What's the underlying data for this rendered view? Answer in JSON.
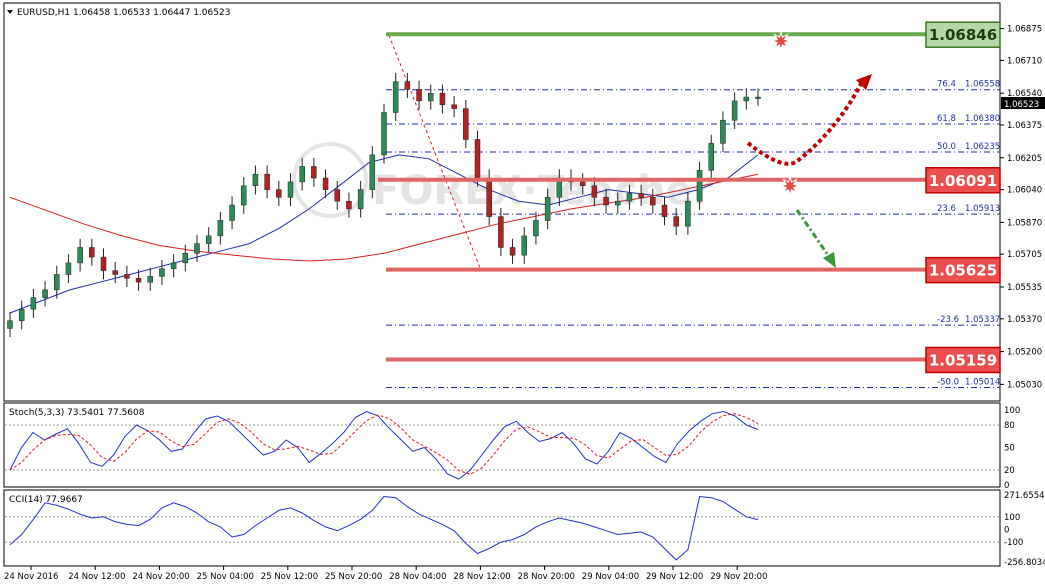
{
  "main_header": "EURUSD,H1  1.06458 1.06533 1.06447 1.06523",
  "stoch_header": "Stoch(5,3,3) 73.5401 77.5608",
  "cci_header": "CCI(14) 77.9667",
  "watermark": "FOREX·Teacher",
  "current_price": "1.06523",
  "key_levels": [
    {
      "label": "1.06846",
      "value": 1.06846,
      "color": "#6aa84f"
    },
    {
      "label": "1.06091",
      "value": 1.06091,
      "color": "#e06666"
    },
    {
      "label": "1.05625",
      "value": 1.05625,
      "color": "#e06666"
    },
    {
      "label": "1.05159",
      "value": 1.05159,
      "color": "#e06666"
    }
  ],
  "fib_levels": [
    {
      "pct": "76.4",
      "price": "1.06558",
      "value": 1.06558
    },
    {
      "pct": "61.8",
      "price": "1.06380",
      "value": 1.0638
    },
    {
      "pct": "50.0",
      "price": "1.06235",
      "value": 1.06235
    },
    {
      "pct": "23.6",
      "price": "1.05913",
      "value": 1.05913
    },
    {
      "pct": "-23.6",
      "price": "1.05337",
      "value": 1.05337
    },
    {
      "pct": "-50.0",
      "price": "1.05014",
      "value": 1.05014
    }
  ],
  "price_ticks": [
    "1.06875",
    "1.06710",
    "1.06540",
    "1.06375",
    "1.06205",
    "1.06040",
    "1.05870",
    "1.05705",
    "1.05535",
    "1.05370",
    "1.05200",
    "1.05030"
  ],
  "stoch_ticks": [
    "100",
    "80",
    "50",
    "20",
    "0"
  ],
  "cci_ticks": [
    "271.6554",
    "100",
    "0",
    "-100",
    "-256.8034"
  ],
  "time_labels": [
    "24 Nov 2016",
    "24 Nov 12:00",
    "24 Nov 20:00",
    "25 Nov 04:00",
    "25 Nov 12:00",
    "25 Nov 20:00",
    "28 Nov 04:00",
    "28 Nov 12:00",
    "28 Nov 20:00",
    "29 Nov 04:00",
    "29 Nov 12:00",
    "29 Nov 20:00"
  ],
  "colors": {
    "bull": "#2e8b57",
    "bear": "#b22222",
    "ma_fast": "#1f2fa8",
    "ma_slow": "#d62020",
    "fib": "#1f2fa8",
    "stoch_main": "#2233cc",
    "stoch_signal": "#dd2222",
    "cci": "#2233cc",
    "scenario_up": "#c00000",
    "scenario_down": "#3a9a3a"
  },
  "chart_data": {
    "type": "candlestick",
    "symbol": "EURUSD",
    "timeframe": "H1",
    "ylim": [
      1.0498,
      1.0693
    ],
    "x_categories": [
      "24 Nov 2016",
      "24 Nov 12:00",
      "24 Nov 20:00",
      "25 Nov 04:00",
      "25 Nov 12:00",
      "25 Nov 20:00",
      "28 Nov 04:00",
      "28 Nov 12:00",
      "28 Nov 20:00",
      "29 Nov 04:00",
      "29 Nov 12:00",
      "29 Nov 20:00"
    ],
    "close_series": [
      1.0536,
      1.0542,
      1.0548,
      1.0552,
      1.056,
      1.0566,
      1.0574,
      1.0569,
      1.0562,
      1.056,
      1.0558,
      1.0556,
      1.0559,
      1.0563,
      1.0566,
      1.0571,
      1.0576,
      1.058,
      1.0588,
      1.0596,
      1.0606,
      1.0612,
      1.0604,
      1.06,
      1.0608,
      1.0616,
      1.061,
      1.0604,
      1.0598,
      1.0594,
      1.0604,
      1.0622,
      1.0644,
      1.066,
      1.0656,
      1.065,
      1.0654,
      1.0648,
      1.0646,
      1.063,
      1.061,
      1.059,
      1.0574,
      1.057,
      1.058,
      1.0588,
      1.06,
      1.061,
      1.0608,
      1.0606,
      1.06,
      1.0596,
      1.0598,
      1.0602,
      1.06,
      1.0596,
      1.059,
      1.0585,
      1.0598,
      1.0614,
      1.0628,
      1.064,
      1.065,
      1.0652,
      1.0652
    ],
    "ma_fast_series": [
      1.054,
      1.0546,
      1.0552,
      1.0556,
      1.056,
      1.0564,
      1.0568,
      1.0572,
      1.0576,
      1.0584,
      1.0594,
      1.0606,
      1.0618,
      1.0622,
      1.062,
      1.0612,
      1.0604,
      1.0598,
      1.0596,
      1.06,
      1.0604,
      1.0602,
      1.06,
      1.0604,
      1.061,
      1.0622
    ],
    "ma_slow_series": [
      1.06,
      1.0593,
      1.0586,
      1.058,
      1.0575,
      1.0572,
      1.057,
      1.0568,
      1.0567,
      1.0568,
      1.0571,
      1.0576,
      1.0581,
      1.0586,
      1.059,
      1.0594,
      1.0597,
      1.06,
      1.0604,
      1.0608,
      1.0612
    ],
    "stochastic": {
      "k": 73.5401,
      "d": 77.5608,
      "levels": [
        20,
        80
      ]
    },
    "cci": {
      "value": 77.9667,
      "levels": [
        -100,
        100
      ],
      "ylim": [
        -256.8034,
        271.6554
      ]
    },
    "scenarios": [
      "up to 1.06846",
      "down to 1.05625"
    ]
  }
}
